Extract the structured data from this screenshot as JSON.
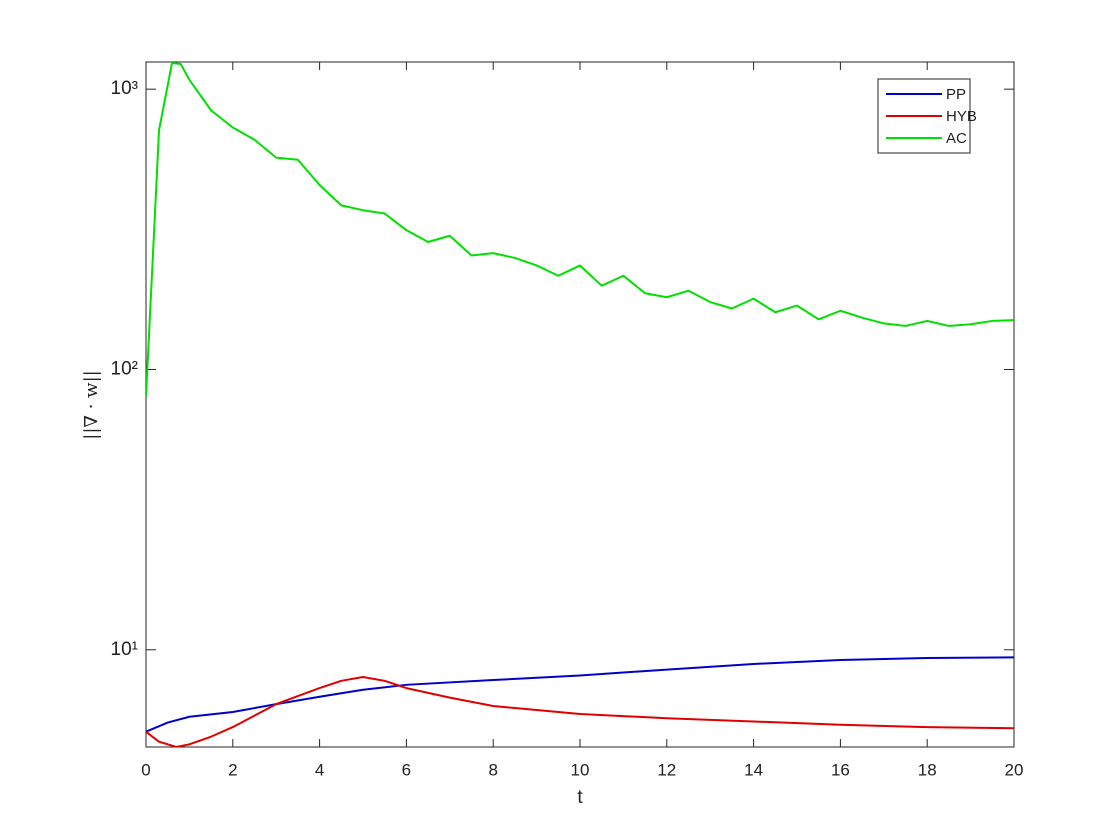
{
  "chart_data": {
    "type": "line",
    "xlabel": "t",
    "ylabel": "||∇ · w||",
    "xlim": [
      0,
      20
    ],
    "xticks": [
      0,
      2,
      4,
      6,
      8,
      10,
      12,
      14,
      16,
      18,
      20
    ],
    "ylim": [
      4.5,
      1250
    ],
    "log_y": true,
    "yticks": [
      {
        "value": 10,
        "label": "10¹"
      },
      {
        "value": 100,
        "label": "10²"
      },
      {
        "value": 1000,
        "label": "10³"
      }
    ],
    "legend": "upper right",
    "series": [
      {
        "name": "PP",
        "color": "#0000cc",
        "x": [
          0,
          0.5,
          1,
          2,
          3,
          4,
          5,
          6,
          8,
          10,
          12,
          14,
          16,
          18,
          20
        ],
        "values": [
          5.1,
          5.5,
          5.77,
          6.0,
          6.4,
          6.8,
          7.2,
          7.5,
          7.8,
          8.1,
          8.5,
          8.9,
          9.2,
          9.35,
          9.4
        ]
      },
      {
        "name": "HYB",
        "color": "#e00000",
        "x": [
          0,
          0.3,
          0.7,
          1,
          1.5,
          2,
          3,
          4,
          4.5,
          5,
          5.5,
          6,
          7,
          8,
          10,
          12,
          14,
          16,
          18,
          20
        ],
        "values": [
          5.1,
          4.7,
          4.5,
          4.6,
          4.9,
          5.3,
          6.4,
          7.3,
          7.75,
          8.0,
          7.75,
          7.3,
          6.75,
          6.3,
          5.9,
          5.7,
          5.55,
          5.4,
          5.3,
          5.25
        ]
      },
      {
        "name": "AC",
        "color": "#00e000",
        "x": [
          0,
          0.3,
          0.6,
          0.8,
          1,
          1.5,
          2,
          2.5,
          3,
          3.5,
          4,
          4.5,
          5,
          5.5,
          6,
          6.5,
          7,
          7.5,
          8,
          8.5,
          9,
          9.5,
          10,
          10.5,
          11,
          11.5,
          12,
          12.5,
          13,
          13.5,
          14,
          14.5,
          15,
          15.5,
          16,
          16.5,
          17,
          17.5,
          18,
          18.5,
          19,
          19.5,
          20
        ],
        "values": [
          80,
          714,
          1240,
          1230,
          1080,
          840,
          730,
          660,
          570,
          560,
          455,
          385,
          370,
          360,
          314,
          285,
          300,
          255,
          260,
          250,
          235,
          216,
          235,
          199,
          216,
          187,
          181,
          191,
          174,
          165,
          179,
          160,
          169,
          151,
          162,
          153,
          146,
          143,
          149,
          143,
          145,
          149,
          150
        ]
      }
    ]
  }
}
